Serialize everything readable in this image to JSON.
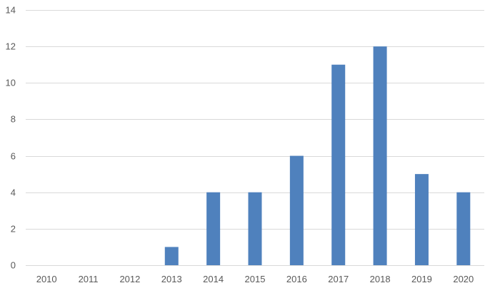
{
  "chart_data": {
    "type": "bar",
    "categories": [
      "2010",
      "2011",
      "2012",
      "2013",
      "2014",
      "2015",
      "2016",
      "2017",
      "2018",
      "2019",
      "2020"
    ],
    "values": [
      0,
      0,
      0,
      1,
      4,
      4,
      6,
      11,
      12,
      5,
      4
    ],
    "title": "",
    "xlabel": "",
    "ylabel": "",
    "ylim": [
      0,
      14
    ],
    "yticks": [
      "0",
      "2",
      "4",
      "6",
      "8",
      "10",
      "12",
      "14"
    ],
    "grid": true,
    "legend": "none",
    "bar_color": "#4f81bd",
    "grid_color": "#d9d9d9",
    "tick_label_color": "#595959"
  }
}
